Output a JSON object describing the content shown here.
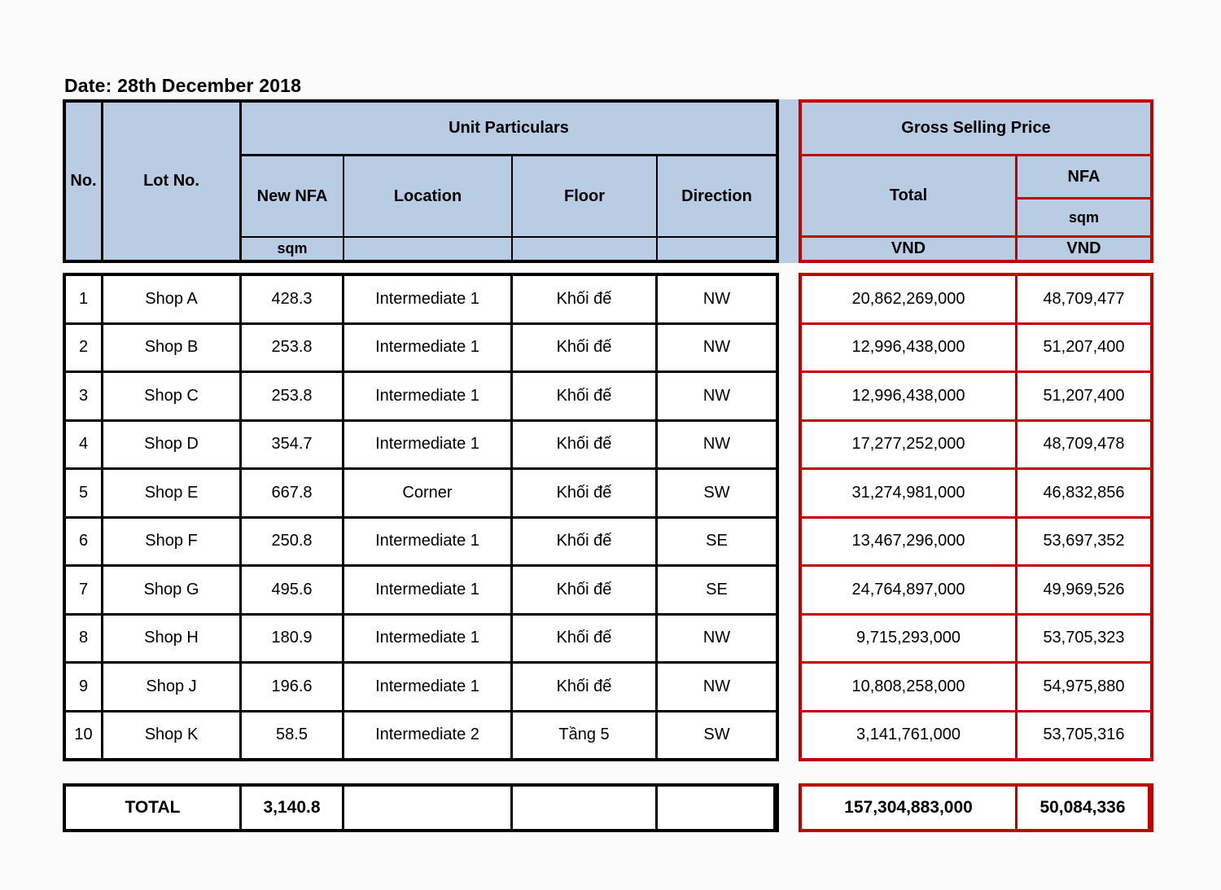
{
  "page": {
    "date_label": "Date: 28th December 2018"
  },
  "colors": {
    "header_fill": "#b8cce4",
    "accent_red": "#c00000",
    "border_black": "#000000"
  },
  "table": {
    "headers": {
      "no": "No.",
      "lot": "Lot No.",
      "unit_particulars": "Unit Particulars",
      "new_nfa": "New NFA",
      "location": "Location",
      "floor": "Floor",
      "direction": "Direction",
      "sqm_unit": "sqm",
      "gross_selling_price": "Gross Selling Price",
      "total": "Total",
      "nfa": "NFA",
      "nfa_sqm": "sqm",
      "vnd_total": "VND",
      "vnd_nfa": "VND"
    },
    "rows": [
      {
        "no": "1",
        "lot": "Shop A",
        "new_nfa": "428.3",
        "location": "Intermediate 1",
        "floor": "Khối đế",
        "direction": "NW",
        "total_vnd": "20,862,269,000",
        "nfa_vnd": "48,709,477"
      },
      {
        "no": "2",
        "lot": "Shop B",
        "new_nfa": "253.8",
        "location": "Intermediate 1",
        "floor": "Khối đế",
        "direction": "NW",
        "total_vnd": "12,996,438,000",
        "nfa_vnd": "51,207,400"
      },
      {
        "no": "3",
        "lot": "Shop C",
        "new_nfa": "253.8",
        "location": "Intermediate 1",
        "floor": "Khối đế",
        "direction": "NW",
        "total_vnd": "12,996,438,000",
        "nfa_vnd": "51,207,400"
      },
      {
        "no": "4",
        "lot": "Shop D",
        "new_nfa": "354.7",
        "location": "Intermediate 1",
        "floor": "Khối đế",
        "direction": "NW",
        "total_vnd": "17,277,252,000",
        "nfa_vnd": "48,709,478"
      },
      {
        "no": "5",
        "lot": "Shop E",
        "new_nfa": "667.8",
        "location": "Corner",
        "floor": "Khối đế",
        "direction": "SW",
        "total_vnd": "31,274,981,000",
        "nfa_vnd": "46,832,856"
      },
      {
        "no": "6",
        "lot": "Shop F",
        "new_nfa": "250.8",
        "location": "Intermediate 1",
        "floor": "Khối đế",
        "direction": "SE",
        "total_vnd": "13,467,296,000",
        "nfa_vnd": "53,697,352"
      },
      {
        "no": "7",
        "lot": "Shop G",
        "new_nfa": "495.6",
        "location": "Intermediate 1",
        "floor": "Khối đế",
        "direction": "SE",
        "total_vnd": "24,764,897,000",
        "nfa_vnd": "49,969,526"
      },
      {
        "no": "8",
        "lot": "Shop H",
        "new_nfa": "180.9",
        "location": "Intermediate 1",
        "floor": "Khối đế",
        "direction": "NW",
        "total_vnd": "9,715,293,000",
        "nfa_vnd": "53,705,323"
      },
      {
        "no": "9",
        "lot": "Shop J",
        "new_nfa": "196.6",
        "location": "Intermediate 1",
        "floor": "Khối đế",
        "direction": "NW",
        "total_vnd": "10,808,258,000",
        "nfa_vnd": "54,975,880"
      },
      {
        "no": "10",
        "lot": "Shop K",
        "new_nfa": "58.5",
        "location": "Intermediate 2",
        "floor": "Tầng 5",
        "direction": "SW",
        "total_vnd": "3,141,761,000",
        "nfa_vnd": "53,705,316"
      }
    ],
    "total_row": {
      "label": "TOTAL",
      "new_nfa": "3,140.8",
      "total_vnd": "157,304,883,000",
      "nfa_vnd": "50,084,336"
    }
  }
}
